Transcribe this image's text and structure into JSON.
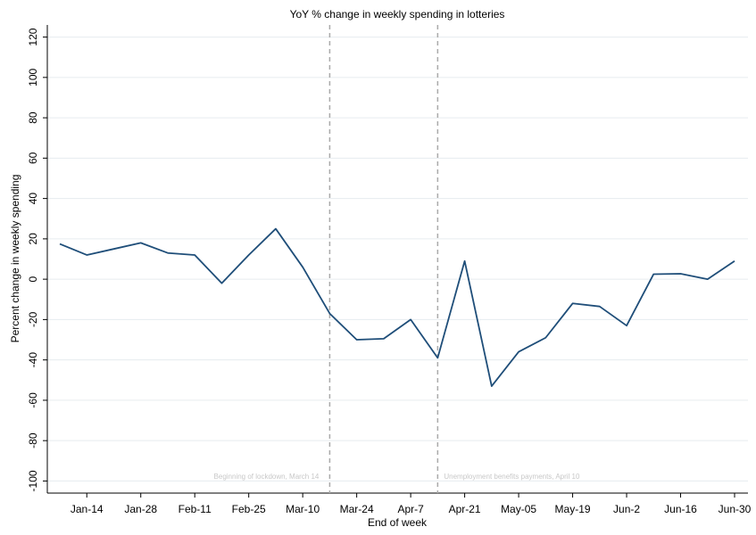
{
  "chart_data": {
    "type": "line",
    "title": "YoY % change in weekly spending in lotteries",
    "x_label": "End of week",
    "y_label": "Percent change in weekly spending",
    "categories": [
      null,
      "Jan-14",
      null,
      "Jan-28",
      null,
      "Feb-11",
      null,
      "Feb-25",
      null,
      "Mar-10",
      null,
      "Mar-24",
      null,
      "Apr-7",
      null,
      "Apr-21",
      null,
      "May-05",
      null,
      "May-19",
      null,
      "Jun-2",
      null,
      "Jun-16",
      null,
      "Jun-30"
    ],
    "series": [
      {
        "name": "Lotteries",
        "color": "#1f4e79",
        "values": [
          17.5,
          12,
          15,
          18,
          13,
          12,
          -2,
          12,
          25,
          6,
          -17,
          -30,
          -29.5,
          -20,
          -39,
          9,
          -53,
          -36,
          -29,
          -12,
          -13.5,
          -23,
          2.5,
          2.7,
          0,
          9
        ]
      }
    ],
    "ylim": [
      -106,
      126
    ],
    "yticks": [
      -100,
      -80,
      -60,
      -40,
      -20,
      0,
      20,
      40,
      60,
      80,
      100,
      120
    ],
    "grid": true,
    "annotations": [
      {
        "text": "Beginning of lockdown, March 14",
        "at": 10
      },
      {
        "text": "Unemployment benefits payments, April 10",
        "at": 14
      }
    ]
  }
}
